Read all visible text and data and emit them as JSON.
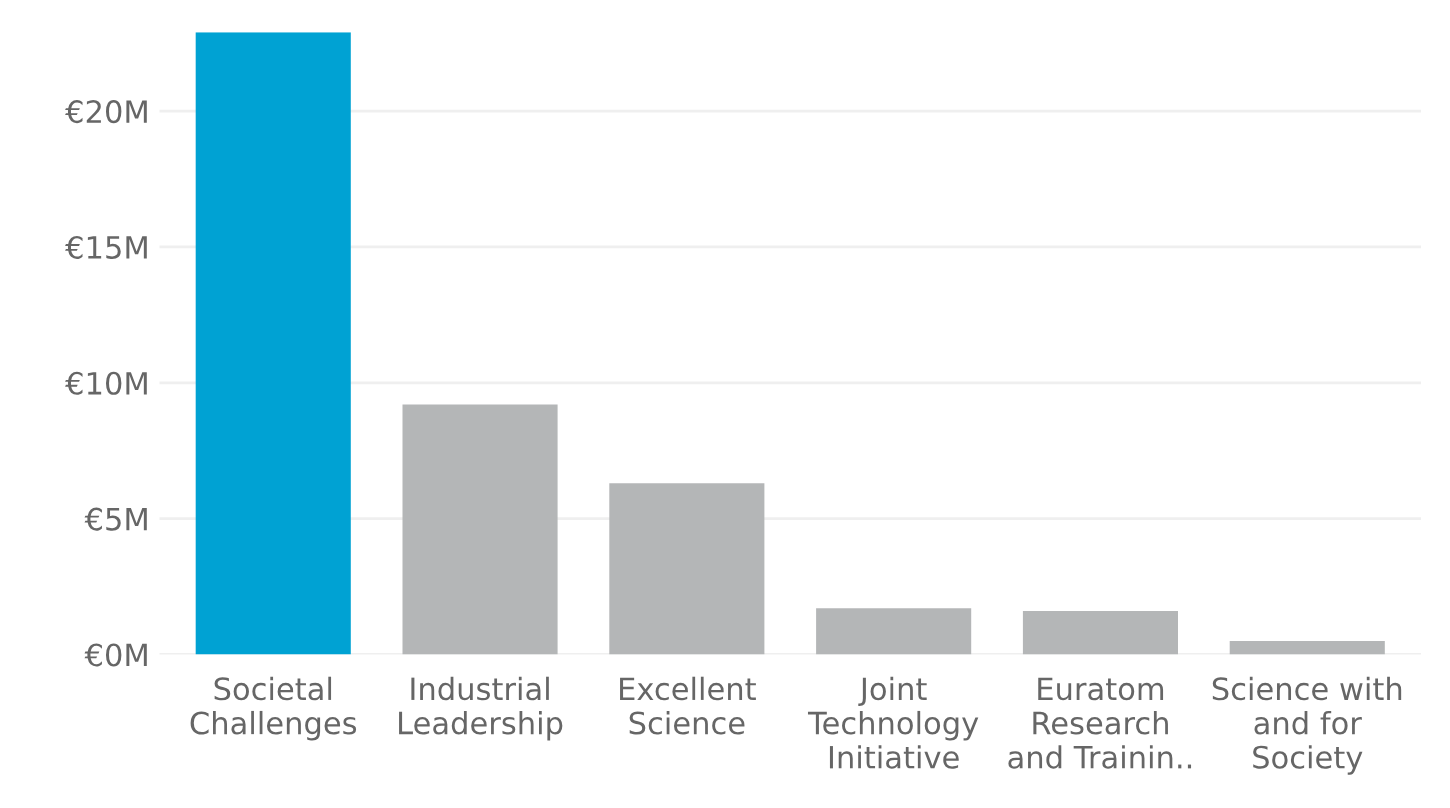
{
  "chart_data": {
    "type": "bar",
    "categories": [
      "Societal\nChallenges",
      "Industrial\nLeadership",
      "Excellent\nScience",
      "Joint\nTechnology\nInitiative",
      "Euratom\nResearch\nand Trainin..",
      "Science with\nand for\nSociety"
    ],
    "values": [
      22.9,
      9.2,
      6.3,
      1.7,
      1.6,
      0.5
    ],
    "colors": [
      "#00a2d3",
      "#b4b6b7",
      "#b4b6b7",
      "#b4b6b7",
      "#b4b6b7",
      "#b4b6b7"
    ],
    "ylim": [
      0,
      22.9
    ],
    "yticks": [
      {
        "value": 0,
        "label": "€0M"
      },
      {
        "value": 5,
        "label": "€5M"
      },
      {
        "value": 10,
        "label": "€10M"
      },
      {
        "value": 15,
        "label": "€15M"
      },
      {
        "value": 20,
        "label": "€20M"
      }
    ],
    "grid": "y"
  }
}
